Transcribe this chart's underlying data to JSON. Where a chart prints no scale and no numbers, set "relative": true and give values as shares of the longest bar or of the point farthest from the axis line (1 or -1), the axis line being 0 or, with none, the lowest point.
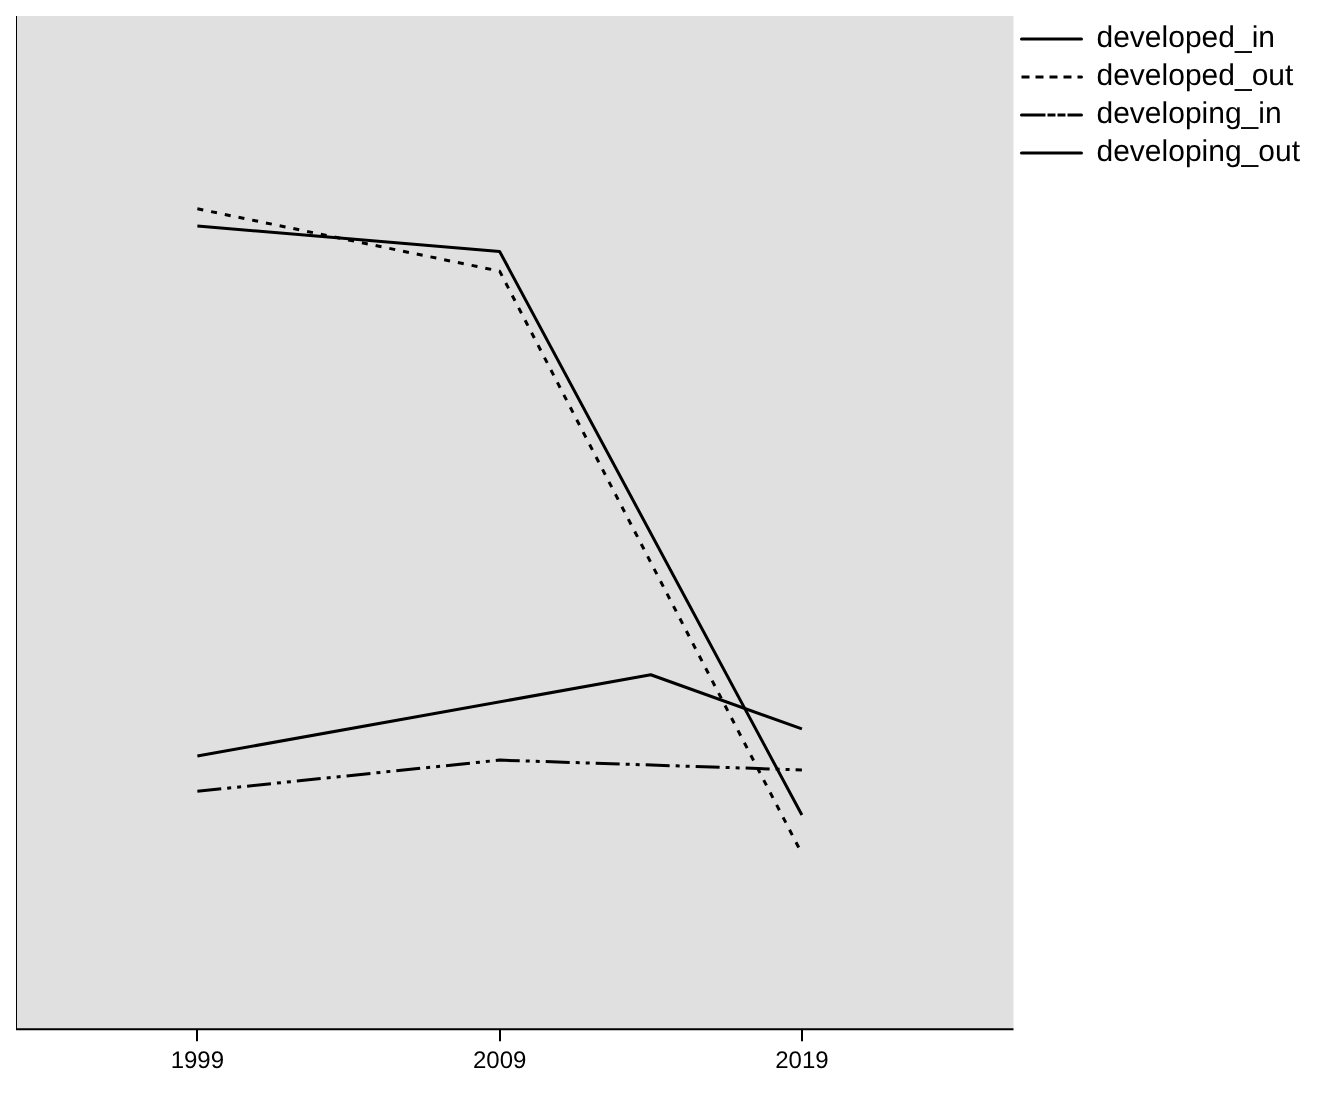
{
  "chart_data": {
    "type": "line",
    "relative": true,
    "xlim": [
      1993,
      2026
    ],
    "xticks": [
      1999,
      2009,
      2019
    ],
    "legend": "top right",
    "grid": false,
    "marker": "none",
    "series": [
      {
        "name": "developed_in",
        "color": "#000000",
        "line_style": "solid",
        "x": [
          1999,
          2009,
          2019
        ],
        "values": [
          0.979,
          0.948,
          0.261
        ]
      },
      {
        "name": "developed_out",
        "color": "#000000",
        "line_style": "dotted",
        "x": [
          1999,
          2009,
          2019
        ],
        "values": [
          1,
          0.924,
          0.214
        ]
      },
      {
        "name": "developing_in",
        "color": "#000000",
        "line_style": "dashed",
        "x": [
          1999,
          2009,
          2019
        ],
        "values": [
          0.29,
          0.328,
          0.316
        ]
      },
      {
        "name": "developing_out",
        "color": "#000000",
        "line_style": "solid",
        "x": [
          1999,
          2014,
          2019
        ],
        "values": [
          0.333,
          0.432,
          0.366
        ]
      }
    ]
  }
}
